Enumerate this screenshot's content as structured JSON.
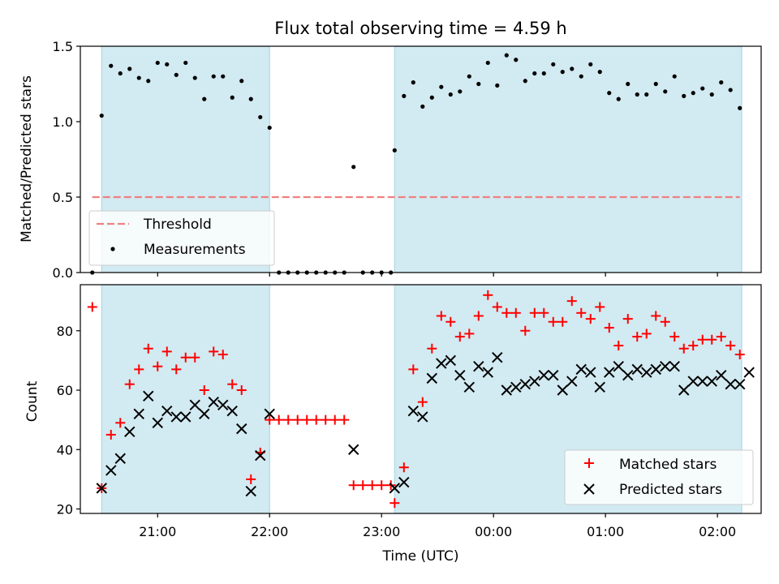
{
  "title": "Flux total observing time = 4.59 h",
  "colors": {
    "span": "#add8e6",
    "threshold": "#f08080",
    "measurement": "#000000",
    "matched": "#ff0000",
    "predicted": "#000000"
  },
  "chart_data": [
    {
      "type": "scatter",
      "ylabel": "Matched/Predicted stars",
      "ylim": [
        0,
        1.5
      ],
      "yticks": [
        "0.0",
        "0.5",
        "1.0",
        "1.5"
      ],
      "x_axis": "time (UTC), shared with the lower panel; tick labels not shown on this panel",
      "observing_spans": [
        [
          "20:30",
          "22:00"
        ],
        [
          "23:07",
          "02:13"
        ]
      ],
      "threshold": 0.5,
      "legend": {
        "position": "lower-left",
        "entries": [
          "Threshold",
          "Measurements"
        ]
      },
      "series": [
        {
          "name": "Measurements",
          "marker": "dot",
          "points": [
            [
              "20:25",
              0.0
            ],
            [
              "20:30",
              1.04
            ],
            [
              "20:35",
              1.37
            ],
            [
              "20:40",
              1.32
            ],
            [
              "20:45",
              1.35
            ],
            [
              "20:50",
              1.29
            ],
            [
              "20:55",
              1.27
            ],
            [
              "21:00",
              1.39
            ],
            [
              "21:05",
              1.38
            ],
            [
              "21:10",
              1.31
            ],
            [
              "21:15",
              1.39
            ],
            [
              "21:20",
              1.29
            ],
            [
              "21:25",
              1.15
            ],
            [
              "21:30",
              1.3
            ],
            [
              "21:35",
              1.3
            ],
            [
              "21:40",
              1.16
            ],
            [
              "21:45",
              1.27
            ],
            [
              "21:50",
              1.15
            ],
            [
              "21:55",
              1.03
            ],
            [
              "22:00",
              0.96
            ],
            [
              "22:05",
              0.0
            ],
            [
              "22:10",
              0.0
            ],
            [
              "22:15",
              0.0
            ],
            [
              "22:20",
              0.0
            ],
            [
              "22:25",
              0.0
            ],
            [
              "22:30",
              0.0
            ],
            [
              "22:35",
              0.0
            ],
            [
              "22:40",
              0.0
            ],
            [
              "22:45",
              0.7
            ],
            [
              "22:50",
              0.0
            ],
            [
              "22:55",
              0.0
            ],
            [
              "23:00",
              0.0
            ],
            [
              "23:05",
              0.0
            ],
            [
              "23:07",
              0.81
            ],
            [
              "23:12",
              1.17
            ],
            [
              "23:17",
              1.26
            ],
            [
              "23:22",
              1.1
            ],
            [
              "23:27",
              1.16
            ],
            [
              "23:32",
              1.23
            ],
            [
              "23:37",
              1.18
            ],
            [
              "23:42",
              1.2
            ],
            [
              "23:47",
              1.3
            ],
            [
              "23:52",
              1.25
            ],
            [
              "23:57",
              1.39
            ],
            [
              "00:02",
              1.24
            ],
            [
              "00:07",
              1.44
            ],
            [
              "00:12",
              1.41
            ],
            [
              "00:17",
              1.27
            ],
            [
              "00:22",
              1.32
            ],
            [
              "00:27",
              1.32
            ],
            [
              "00:32",
              1.38
            ],
            [
              "00:37",
              1.33
            ],
            [
              "00:42",
              1.35
            ],
            [
              "00:47",
              1.3
            ],
            [
              "00:52",
              1.38
            ],
            [
              "00:57",
              1.33
            ],
            [
              "01:02",
              1.19
            ],
            [
              "01:07",
              1.15
            ],
            [
              "01:12",
              1.25
            ],
            [
              "01:17",
              1.18
            ],
            [
              "01:22",
              1.18
            ],
            [
              "01:27",
              1.25
            ],
            [
              "01:32",
              1.2
            ],
            [
              "01:37",
              1.3
            ],
            [
              "01:42",
              1.17
            ],
            [
              "01:47",
              1.19
            ],
            [
              "01:52",
              1.22
            ],
            [
              "01:57",
              1.18
            ],
            [
              "02:02",
              1.26
            ],
            [
              "02:07",
              1.21
            ],
            [
              "02:12",
              1.09
            ]
          ]
        }
      ]
    },
    {
      "type": "scatter",
      "xlabel": "Time (UTC)",
      "ylabel": "Count",
      "ylim": [
        18.5,
        95.5
      ],
      "yticks": [
        "20",
        "40",
        "60",
        "80"
      ],
      "xticks": [
        "21:00",
        "22:00",
        "23:00",
        "00:00",
        "01:00",
        "02:00"
      ],
      "observing_spans": [
        [
          "20:30",
          "22:00"
        ],
        [
          "23:07",
          "02:13"
        ]
      ],
      "legend": {
        "position": "lower-right",
        "entries": [
          "Matched stars",
          "Predicted stars"
        ]
      },
      "series": [
        {
          "name": "Matched stars",
          "marker": "plus",
          "points": [
            [
              "20:25",
              88
            ],
            [
              "20:30",
              27
            ],
            [
              "20:35",
              45
            ],
            [
              "20:40",
              49
            ],
            [
              "20:45",
              62
            ],
            [
              "20:50",
              67
            ],
            [
              "20:55",
              74
            ],
            [
              "21:00",
              68
            ],
            [
              "21:05",
              73
            ],
            [
              "21:10",
              67
            ],
            [
              "21:15",
              71
            ],
            [
              "21:20",
              71
            ],
            [
              "21:25",
              60
            ],
            [
              "21:30",
              73
            ],
            [
              "21:35",
              72
            ],
            [
              "21:40",
              62
            ],
            [
              "21:45",
              60
            ],
            [
              "21:50",
              30
            ],
            [
              "21:55",
              39
            ],
            [
              "22:00",
              50
            ],
            [
              "22:05",
              50
            ],
            [
              "22:10",
              50
            ],
            [
              "22:15",
              50
            ],
            [
              "22:20",
              50
            ],
            [
              "22:25",
              50
            ],
            [
              "22:30",
              50
            ],
            [
              "22:35",
              50
            ],
            [
              "22:40",
              50
            ],
            [
              "22:45",
              28
            ],
            [
              "22:50",
              28
            ],
            [
              "22:55",
              28
            ],
            [
              "23:00",
              28
            ],
            [
              "23:05",
              28
            ],
            [
              "23:07",
              22
            ],
            [
              "23:12",
              34
            ],
            [
              "23:17",
              67
            ],
            [
              "23:22",
              56
            ],
            [
              "23:27",
              74
            ],
            [
              "23:32",
              85
            ],
            [
              "23:37",
              83
            ],
            [
              "23:42",
              78
            ],
            [
              "23:47",
              79
            ],
            [
              "23:52",
              85
            ],
            [
              "23:57",
              92
            ],
            [
              "00:02",
              88
            ],
            [
              "00:07",
              86
            ],
            [
              "00:12",
              86
            ],
            [
              "00:17",
              80
            ],
            [
              "00:22",
              86
            ],
            [
              "00:27",
              86
            ],
            [
              "00:32",
              83
            ],
            [
              "00:37",
              83
            ],
            [
              "00:42",
              90
            ],
            [
              "00:47",
              86
            ],
            [
              "00:52",
              84
            ],
            [
              "00:57",
              88
            ],
            [
              "01:02",
              81
            ],
            [
              "01:07",
              75
            ],
            [
              "01:12",
              84
            ],
            [
              "01:17",
              78
            ],
            [
              "01:22",
              79
            ],
            [
              "01:27",
              85
            ],
            [
              "01:32",
              83
            ],
            [
              "01:37",
              78
            ],
            [
              "01:42",
              74
            ],
            [
              "01:47",
              75
            ],
            [
              "01:52",
              77
            ],
            [
              "01:57",
              77
            ],
            [
              "02:02",
              78
            ],
            [
              "02:07",
              75
            ],
            [
              "02:12",
              72
            ]
          ]
        },
        {
          "name": "Predicted stars",
          "marker": "x",
          "points": [
            [
              "20:30",
              27
            ],
            [
              "20:35",
              33
            ],
            [
              "20:40",
              37
            ],
            [
              "20:45",
              46
            ],
            [
              "20:50",
              52
            ],
            [
              "20:55",
              58
            ],
            [
              "21:00",
              49
            ],
            [
              "21:05",
              53
            ],
            [
              "21:10",
              51
            ],
            [
              "21:15",
              51
            ],
            [
              "21:20",
              55
            ],
            [
              "21:25",
              52
            ],
            [
              "21:30",
              56
            ],
            [
              "21:35",
              55
            ],
            [
              "21:40",
              53
            ],
            [
              "21:45",
              47
            ],
            [
              "21:50",
              26
            ],
            [
              "21:55",
              38
            ],
            [
              "22:00",
              52
            ],
            [
              "22:45",
              40
            ],
            [
              "23:07",
              27
            ],
            [
              "23:12",
              29
            ],
            [
              "23:17",
              53
            ],
            [
              "23:22",
              51
            ],
            [
              "23:27",
              64
            ],
            [
              "23:32",
              69
            ],
            [
              "23:37",
              70
            ],
            [
              "23:42",
              65
            ],
            [
              "23:47",
              61
            ],
            [
              "23:52",
              68
            ],
            [
              "23:57",
              66
            ],
            [
              "00:02",
              71
            ],
            [
              "00:07",
              60
            ],
            [
              "00:12",
              61
            ],
            [
              "00:17",
              62
            ],
            [
              "00:22",
              63
            ],
            [
              "00:27",
              65
            ],
            [
              "00:32",
              65
            ],
            [
              "00:37",
              60
            ],
            [
              "00:42",
              63
            ],
            [
              "00:47",
              67
            ],
            [
              "00:52",
              66
            ],
            [
              "00:57",
              61
            ],
            [
              "01:02",
              66
            ],
            [
              "01:07",
              68
            ],
            [
              "01:12",
              65
            ],
            [
              "01:17",
              67
            ],
            [
              "01:22",
              66
            ],
            [
              "01:27",
              67
            ],
            [
              "01:32",
              68
            ],
            [
              "01:37",
              68
            ],
            [
              "01:42",
              60
            ],
            [
              "01:47",
              63
            ],
            [
              "01:52",
              63
            ],
            [
              "01:57",
              63
            ],
            [
              "02:02",
              65
            ],
            [
              "02:07",
              62
            ],
            [
              "02:12",
              62
            ],
            [
              "02:17",
              66
            ]
          ]
        }
      ]
    }
  ]
}
